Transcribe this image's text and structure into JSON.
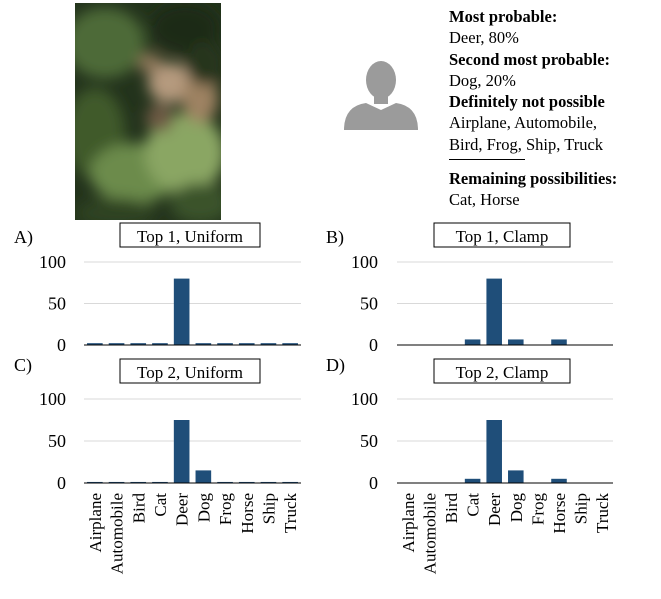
{
  "info": {
    "most_probable_heading": "Most probable:",
    "most_probable_value": "Deer, 80%",
    "second_heading": "Second most probable:",
    "second_value": "Dog, 20%",
    "not_possible_heading": "Definitely not possible",
    "not_possible_line1": "Airplane, Automobile,",
    "not_possible_line2": "Bird, Frog, Ship, Truck",
    "remaining_heading": "Remaining possibilities:",
    "remaining_value": "Cat, Horse"
  },
  "photo_icon": "blurry-deer-photo",
  "avatar_icon": "person-silhouette-icon",
  "colors": {
    "bar": "#1f4e79",
    "grid": "#d9d9d9",
    "avatar": "#9b9b9b"
  },
  "chart_data": [
    {
      "type": "bar",
      "panel": "A)",
      "title": "Top 1, Uniform",
      "categories": [
        "Airplane",
        "Automobile",
        "Bird",
        "Cat",
        "Deer",
        "Dog",
        "Frog",
        "Horse",
        "Ship",
        "Truck"
      ],
      "values": [
        2.2,
        2.2,
        2.2,
        2.2,
        80,
        2.2,
        2.2,
        2.2,
        2.2,
        2.2
      ],
      "yticks": [
        "0",
        "50",
        "100"
      ],
      "ylim": [
        0,
        100
      ],
      "grid": true
    },
    {
      "type": "bar",
      "panel": "B)",
      "title": "Top 1, Clamp",
      "categories": [
        "Airplane",
        "Automobile",
        "Bird",
        "Cat",
        "Deer",
        "Dog",
        "Frog",
        "Horse",
        "Ship",
        "Truck"
      ],
      "values": [
        0,
        0,
        0,
        6.7,
        80,
        6.7,
        0,
        6.7,
        0,
        0
      ],
      "yticks": [
        "0",
        "50",
        "100"
      ],
      "ylim": [
        0,
        100
      ],
      "grid": true
    },
    {
      "type": "bar",
      "panel": "C)",
      "title": "Top 2, Uniform",
      "categories": [
        "Airplane",
        "Automobile",
        "Bird",
        "Cat",
        "Deer",
        "Dog",
        "Frog",
        "Horse",
        "Ship",
        "Truck"
      ],
      "values": [
        1.25,
        1.25,
        1.25,
        1.25,
        75,
        15,
        1.25,
        1.25,
        1.25,
        1.25
      ],
      "yticks": [
        "0",
        "50",
        "100"
      ],
      "ylim": [
        0,
        100
      ],
      "grid": true
    },
    {
      "type": "bar",
      "panel": "D)",
      "title": "Top 2, Clamp",
      "categories": [
        "Airplane",
        "Automobile",
        "Bird",
        "Cat",
        "Deer",
        "Dog",
        "Frog",
        "Horse",
        "Ship",
        "Truck"
      ],
      "values": [
        0,
        0,
        0,
        5,
        75,
        15,
        0,
        5,
        0,
        0
      ],
      "yticks": [
        "0",
        "50",
        "100"
      ],
      "ylim": [
        0,
        100
      ],
      "grid": true
    }
  ]
}
